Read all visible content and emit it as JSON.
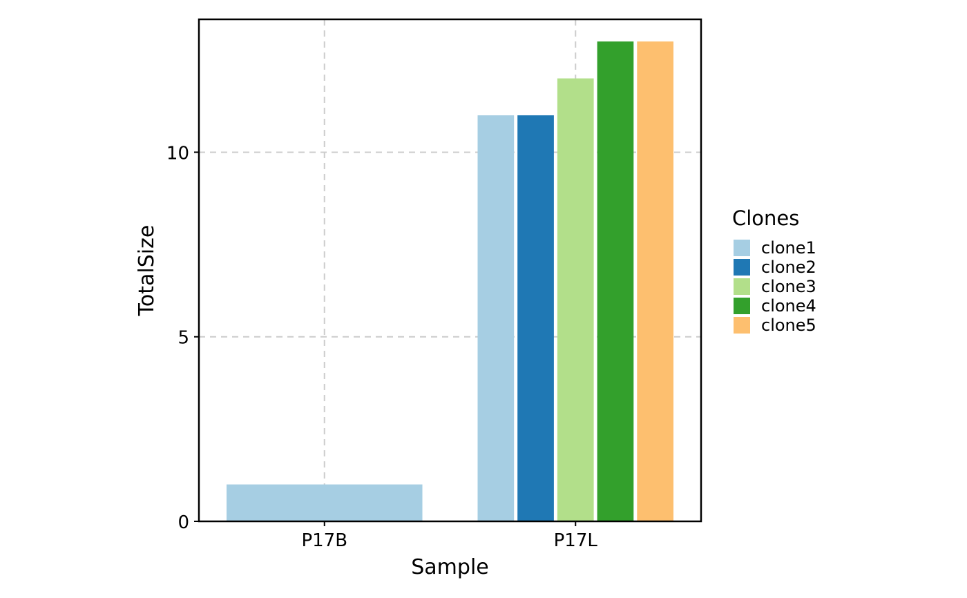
{
  "chart_data": {
    "type": "bar",
    "title": "",
    "xlabel": "Sample",
    "ylabel": "TotalSize",
    "categories": [
      "P17B",
      "P17L"
    ],
    "ylim": [
      0,
      13.6
    ],
    "yticks": [
      0,
      5,
      10
    ],
    "grid": true,
    "legend": {
      "title": "Clones",
      "placement": "right"
    },
    "series": [
      {
        "name": "clone1",
        "color": "#A6CEE3",
        "values": [
          1,
          11
        ]
      },
      {
        "name": "clone2",
        "color": "#1F78B4",
        "values": [
          null,
          11
        ]
      },
      {
        "name": "clone3",
        "color": "#B2DF8A",
        "values": [
          null,
          12
        ]
      },
      {
        "name": "clone4",
        "color": "#33A02C",
        "values": [
          null,
          13
        ]
      },
      {
        "name": "clone5",
        "color": "#FDBF6F",
        "values": [
          null,
          13
        ]
      }
    ]
  }
}
